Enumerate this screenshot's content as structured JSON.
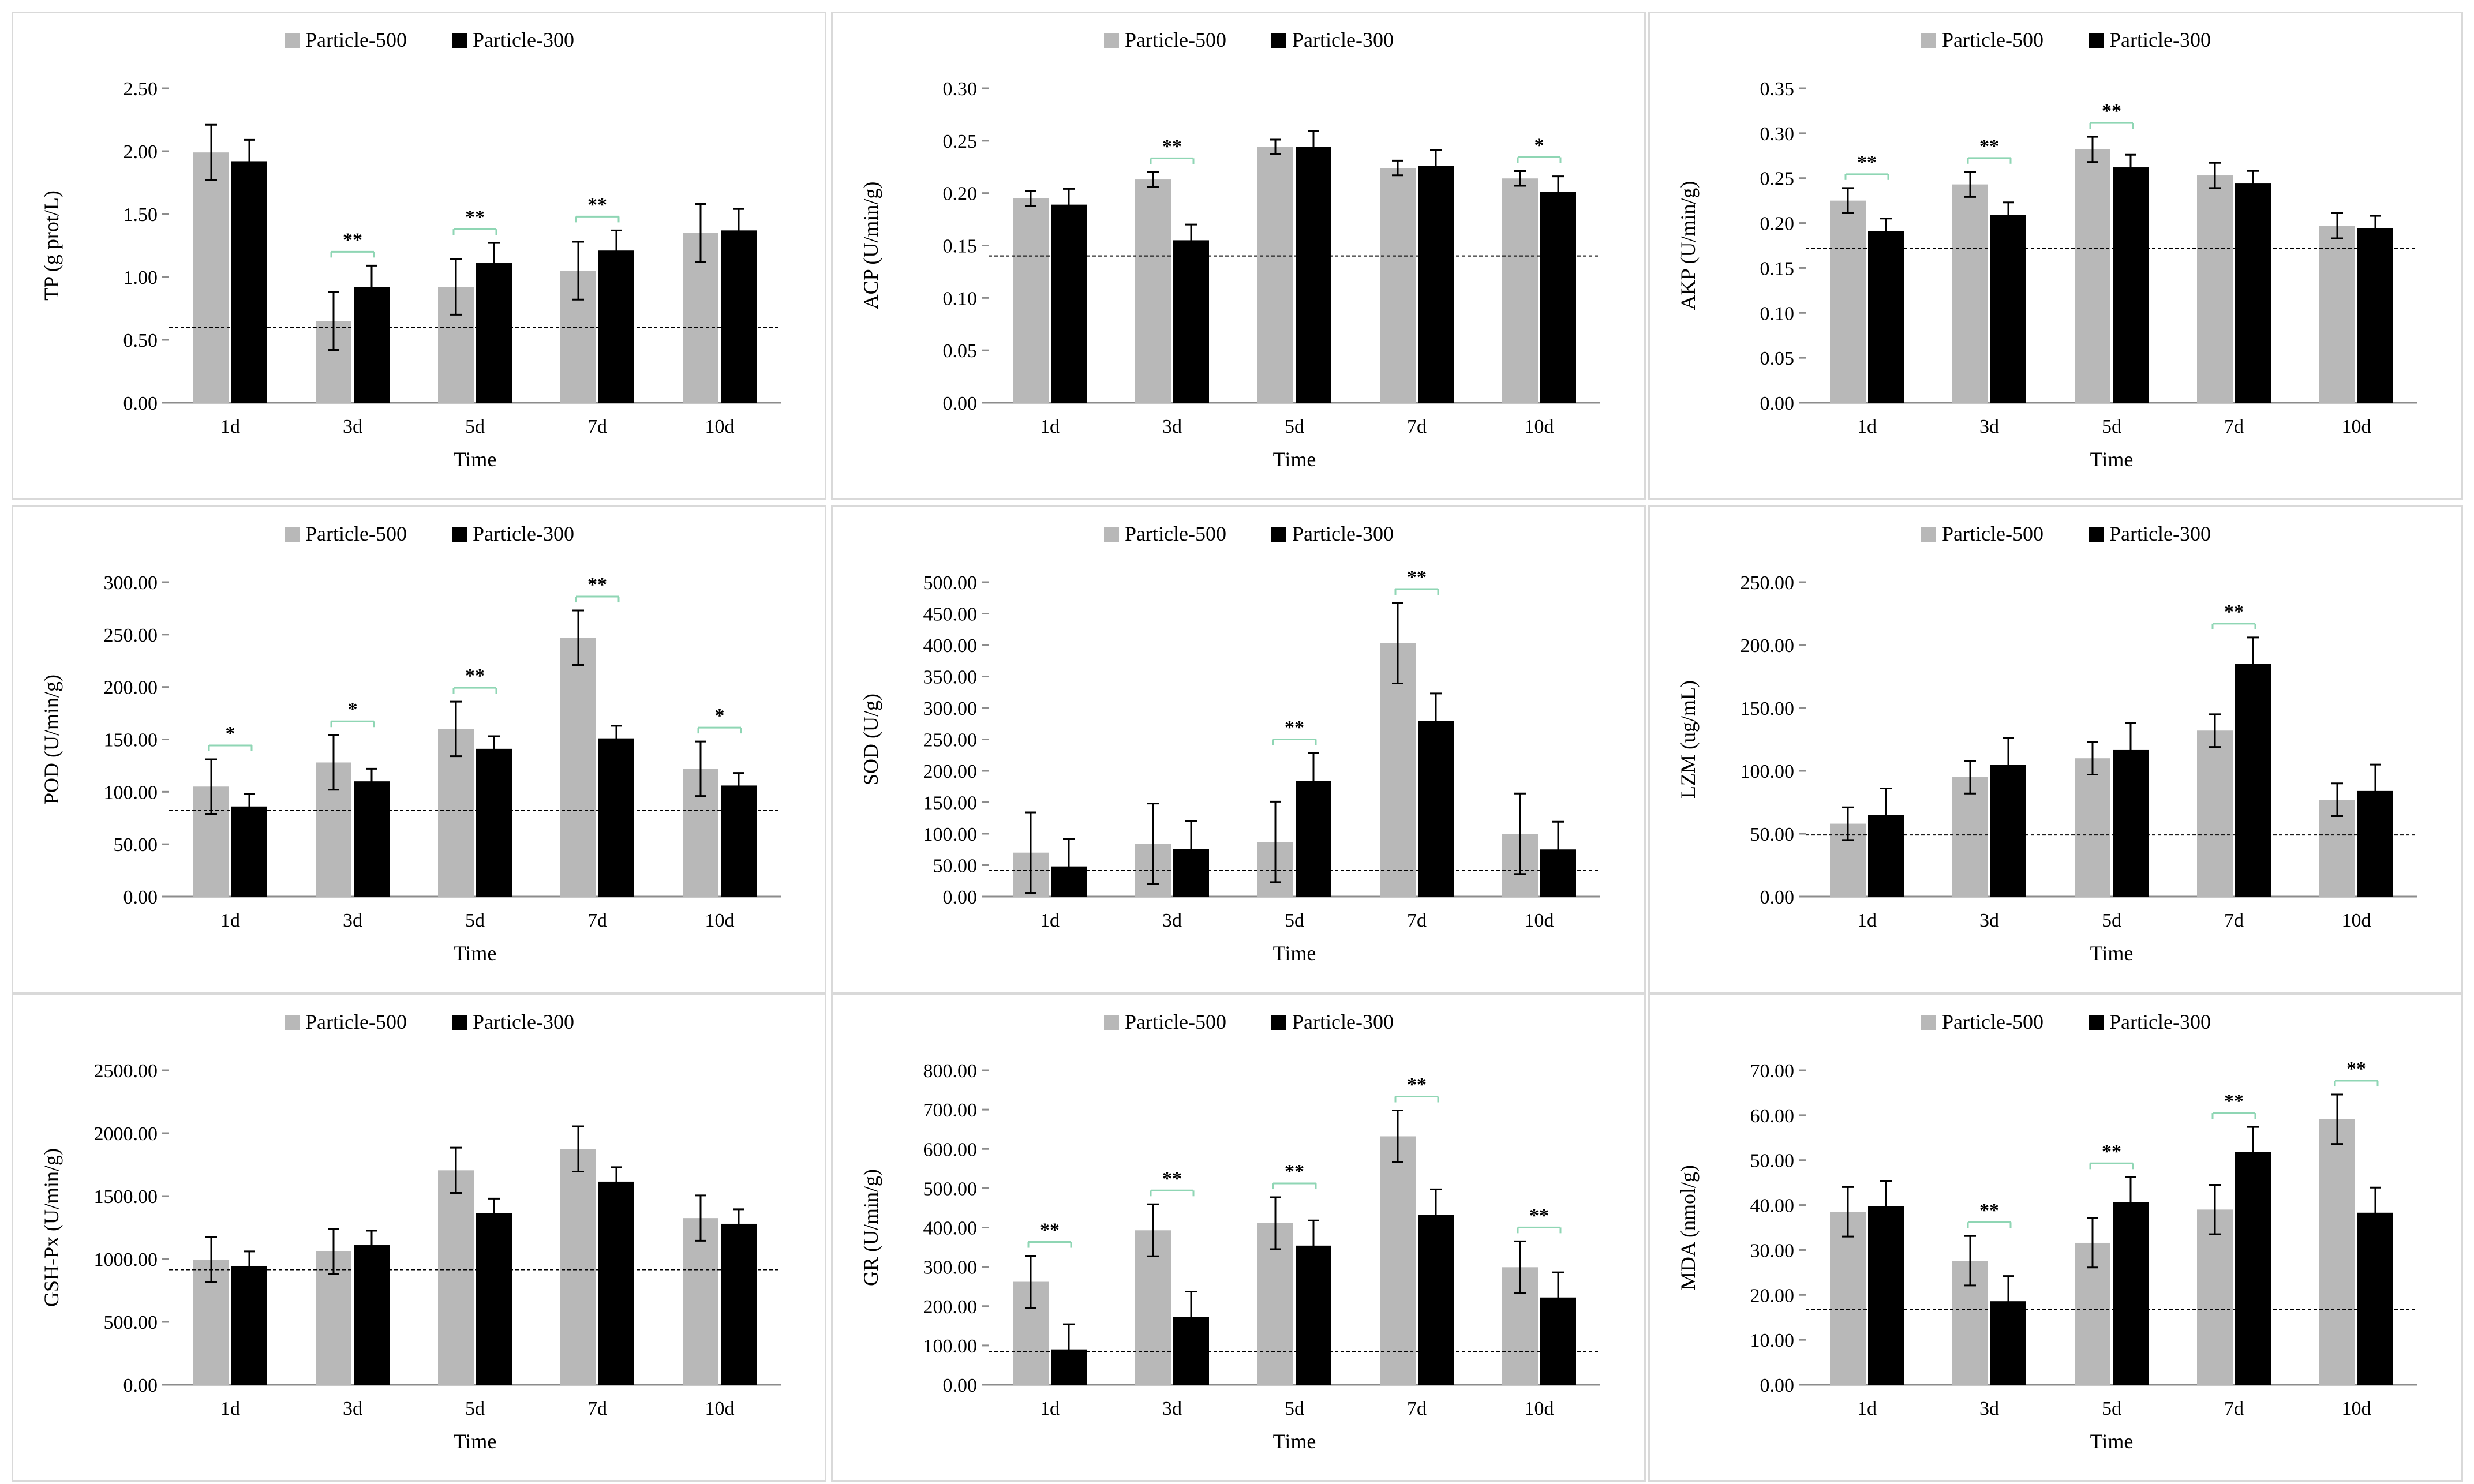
{
  "colors": {
    "particle500": "#b8b8b8",
    "particle300": "#000000",
    "sig_bracket": "#8fd6b4",
    "reference_line": "#000000",
    "axis": "#8c8c8c"
  },
  "chart_data": [
    {
      "type": "bar",
      "ylabel": "TP (g prot/L)",
      "xlabel": "Time",
      "categories": [
        "1d",
        "3d",
        "5d",
        "7d",
        "10d"
      ],
      "ylim": [
        0,
        2.5
      ],
      "yticks": [
        0,
        0.5,
        1.0,
        1.5,
        2.0,
        2.5
      ],
      "ytick_labels": [
        "0.00",
        "0.50",
        "1.00",
        "1.50",
        "2.00",
        "2.50"
      ],
      "legend": "top",
      "reference_line": 0.6,
      "series": [
        {
          "name": "Particle-500",
          "values": [
            1.99,
            0.65,
            0.92,
            1.05,
            1.35
          ],
          "errors": [
            0.22,
            0.23,
            0.22,
            0.23,
            0.23
          ]
        },
        {
          "name": "Particle-300",
          "values": [
            1.92,
            0.92,
            1.11,
            1.21,
            1.37
          ],
          "errors": [
            0.17,
            0.17,
            0.16,
            0.16,
            0.17
          ]
        }
      ],
      "significance": [
        null,
        "**",
        "**",
        "**",
        null
      ]
    },
    {
      "type": "bar",
      "ylabel": "ACP  (U/min/g)",
      "xlabel": "Time",
      "categories": [
        "1d",
        "3d",
        "5d",
        "7d",
        "10d"
      ],
      "ylim": [
        0,
        0.3
      ],
      "yticks": [
        0,
        0.05,
        0.1,
        0.15,
        0.2,
        0.25,
        0.3
      ],
      "ytick_labels": [
        "0.00",
        "0.05",
        "0.10",
        "0.15",
        "0.20",
        "0.25",
        "0.30"
      ],
      "legend": "top",
      "reference_line": 0.14,
      "series": [
        {
          "name": "Particle-500",
          "values": [
            0.195,
            0.213,
            0.244,
            0.224,
            0.214
          ],
          "errors": [
            0.007,
            0.007,
            0.007,
            0.007,
            0.007
          ]
        },
        {
          "name": "Particle-300",
          "values": [
            0.189,
            0.155,
            0.244,
            0.226,
            0.201
          ],
          "errors": [
            0.015,
            0.015,
            0.015,
            0.015,
            0.015
          ]
        }
      ],
      "significance": [
        null,
        "**",
        null,
        null,
        "*"
      ]
    },
    {
      "type": "bar",
      "ylabel": "AKP (U/min/g)",
      "xlabel": "Time",
      "categories": [
        "1d",
        "3d",
        "5d",
        "7d",
        "10d"
      ],
      "ylim": [
        0,
        0.35
      ],
      "yticks": [
        0,
        0.05,
        0.1,
        0.15,
        0.2,
        0.25,
        0.3,
        0.35
      ],
      "ytick_labels": [
        "0.00",
        "0.05",
        "0.10",
        "0.15",
        "0.20",
        "0.25",
        "0.30",
        "0.35"
      ],
      "legend": "top",
      "reference_line": 0.172,
      "series": [
        {
          "name": "Particle-500",
          "values": [
            0.225,
            0.243,
            0.282,
            0.253,
            0.197
          ],
          "errors": [
            0.014,
            0.014,
            0.014,
            0.014,
            0.014
          ]
        },
        {
          "name": "Particle-300",
          "values": [
            0.191,
            0.209,
            0.262,
            0.244,
            0.194
          ],
          "errors": [
            0.014,
            0.014,
            0.014,
            0.014,
            0.014
          ]
        }
      ],
      "significance": [
        "**",
        "**",
        "**",
        null,
        null
      ]
    },
    {
      "type": "bar",
      "ylabel": "POD (U/min/g)",
      "xlabel": "Time",
      "categories": [
        "1d",
        "3d",
        "5d",
        "7d",
        "10d"
      ],
      "ylim": [
        0,
        300
      ],
      "yticks": [
        0,
        50,
        100,
        150,
        200,
        250,
        300
      ],
      "ytick_labels": [
        "0.00",
        "50.00",
        "100.00",
        "150.00",
        "200.00",
        "250.00",
        "300.00"
      ],
      "legend": "top",
      "reference_line": 82,
      "series": [
        {
          "name": "Particle-500",
          "values": [
            105,
            128,
            160,
            247,
            122
          ],
          "errors": [
            26,
            26,
            26,
            26,
            26
          ]
        },
        {
          "name": "Particle-300",
          "values": [
            86,
            110,
            141,
            151,
            106
          ],
          "errors": [
            12,
            12,
            12,
            12,
            12
          ]
        }
      ],
      "significance": [
        "*",
        "*",
        "**",
        "**",
        "*"
      ]
    },
    {
      "type": "bar",
      "ylabel": "SOD (U/g)",
      "xlabel": "Time",
      "categories": [
        "1d",
        "3d",
        "5d",
        "7d",
        "10d"
      ],
      "ylim": [
        0,
        500
      ],
      "yticks": [
        0,
        50,
        100,
        150,
        200,
        250,
        300,
        350,
        400,
        450,
        500
      ],
      "ytick_labels": [
        "0.00",
        "50.00",
        "100.00",
        "150.00",
        "200.00",
        "250.00",
        "300.00",
        "350.00",
        "400.00",
        "450.00",
        "500.00"
      ],
      "legend": "top",
      "reference_line": 42,
      "series": [
        {
          "name": "Particle-500",
          "values": [
            70,
            84,
            87,
            403,
            100
          ],
          "errors": [
            64,
            64,
            64,
            64,
            64
          ]
        },
        {
          "name": "Particle-300",
          "values": [
            48,
            76,
            184,
            279,
            75
          ],
          "errors": [
            44,
            44,
            44,
            44,
            44
          ]
        }
      ],
      "significance": [
        null,
        null,
        "**",
        "**",
        null
      ]
    },
    {
      "type": "bar",
      "ylabel": "LZM (ug/mL)",
      "xlabel": "Time",
      "categories": [
        "1d",
        "3d",
        "5d",
        "7d",
        "10d"
      ],
      "ylim": [
        0,
        250
      ],
      "yticks": [
        0,
        50,
        100,
        150,
        200,
        250
      ],
      "ytick_labels": [
        "0.00",
        "50.00",
        "100.00",
        "150.00",
        "200.00",
        "250.00"
      ],
      "legend": "top",
      "reference_line": 49,
      "series": [
        {
          "name": "Particle-500",
          "values": [
            58,
            95,
            110,
            132,
            77
          ],
          "errors": [
            13,
            13,
            13,
            13,
            13
          ]
        },
        {
          "name": "Particle-300",
          "values": [
            65,
            105,
            117,
            185,
            84
          ],
          "errors": [
            21,
            21,
            21,
            21,
            21
          ]
        }
      ],
      "significance": [
        null,
        null,
        null,
        "**",
        null
      ]
    },
    {
      "type": "bar",
      "ylabel": "GSH-Px (U/min/g)",
      "xlabel": "Time",
      "categories": [
        "1d",
        "3d",
        "5d",
        "7d",
        "10d"
      ],
      "ylim": [
        0,
        2500
      ],
      "yticks": [
        0,
        500,
        1000,
        1500,
        2000,
        2500
      ],
      "ytick_labels": [
        "0.00",
        "500.00",
        "1000.00",
        "1500.00",
        "2000.00",
        "2500.00"
      ],
      "legend": "top",
      "reference_line": 915,
      "series": [
        {
          "name": "Particle-500",
          "values": [
            995,
            1060,
            1705,
            1875,
            1325
          ],
          "errors": [
            180,
            180,
            180,
            180,
            180
          ]
        },
        {
          "name": "Particle-300",
          "values": [
            945,
            1110,
            1365,
            1615,
            1280
          ],
          "errors": [
            115,
            115,
            115,
            115,
            115
          ]
        }
      ],
      "significance": [
        null,
        null,
        null,
        null,
        null
      ]
    },
    {
      "type": "bar",
      "ylabel": "GR (U/min/g)",
      "xlabel": "Time",
      "categories": [
        "1d",
        "3d",
        "5d",
        "7d",
        "10d"
      ],
      "ylim": [
        0,
        800
      ],
      "yticks": [
        0,
        100,
        200,
        300,
        400,
        500,
        600,
        700,
        800
      ],
      "ytick_labels": [
        "0.00",
        "100.00",
        "200.00",
        "300.00",
        "400.00",
        "500.00",
        "600.00",
        "700.00",
        "800.00"
      ],
      "legend": "top",
      "reference_line": 85,
      "series": [
        {
          "name": "Particle-500",
          "values": [
            262,
            393,
            411,
            632,
            299
          ],
          "errors": [
            66,
            66,
            66,
            66,
            66
          ]
        },
        {
          "name": "Particle-300",
          "values": [
            90,
            173,
            354,
            433,
            222
          ],
          "errors": [
            64,
            64,
            64,
            64,
            64
          ]
        }
      ],
      "significance": [
        "**",
        "**",
        "**",
        "**",
        "**"
      ]
    },
    {
      "type": "bar",
      "ylabel": "MDA (nmol/g)",
      "xlabel": "Time",
      "categories": [
        "1d",
        "3d",
        "5d",
        "7d",
        "10d"
      ],
      "ylim": [
        0,
        70
      ],
      "yticks": [
        0,
        10,
        20,
        30,
        40,
        50,
        60,
        70
      ],
      "ytick_labels": [
        "0.00",
        "10.00",
        "20.00",
        "30.00",
        "40.00",
        "50.00",
        "60.00",
        "70.00"
      ],
      "legend": "top",
      "reference_line": 16.8,
      "series": [
        {
          "name": "Particle-500",
          "values": [
            38.5,
            27.6,
            31.6,
            39.0,
            59.1
          ],
          "errors": [
            5.5,
            5.5,
            5.5,
            5.5,
            5.5
          ]
        },
        {
          "name": "Particle-300",
          "values": [
            39.8,
            18.6,
            40.6,
            51.8,
            38.3
          ],
          "errors": [
            5.6,
            5.6,
            5.6,
            5.6,
            5.6
          ]
        }
      ],
      "significance": [
        null,
        "**",
        "**",
        "**",
        "**"
      ]
    }
  ]
}
